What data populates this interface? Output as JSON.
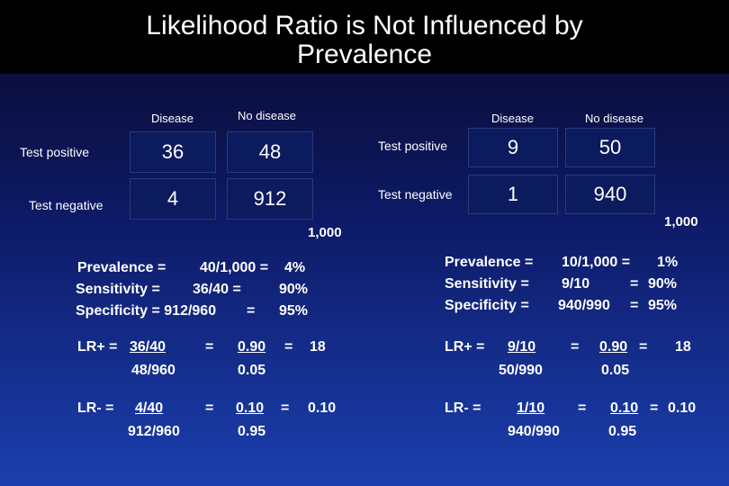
{
  "title": {
    "line1": "Likelihood Ratio is Not Influenced by",
    "line2": "Prevalence"
  },
  "left": {
    "col_headers": [
      "Disease",
      "No disease"
    ],
    "row_labels": [
      "Test positive",
      "Test negative"
    ],
    "cells": [
      [
        "36",
        "48"
      ],
      [
        "4",
        "912"
      ]
    ],
    "total": "1,000",
    "prevalence": {
      "label": "Prevalence =",
      "calc": "40/1,000 =",
      "value": "4%"
    },
    "sensitivity": {
      "label": "Sensitivity =",
      "calc": "36/40   =",
      "value": "90%"
    },
    "specificity": {
      "label": "Specificity = 912/960",
      "calc": "=",
      "value": "95%"
    },
    "lr_plus": {
      "label": "LR+ =",
      "num": "36/40",
      "den": "48/960",
      "eq1": "=",
      "num2": "0.90",
      "eq2": "=",
      "den2": "0.05",
      "result": "18"
    },
    "lr_minus": {
      "label": "LR- =",
      "num": "4/40",
      "den": "912/960",
      "eq1": "=",
      "num2": "0.10",
      "eq2": "=",
      "den2": "0.95",
      "result": "0.10"
    }
  },
  "right": {
    "col_headers": [
      "Disease",
      "No disease"
    ],
    "row_labels": [
      "Test positive",
      "Test negative"
    ],
    "cells": [
      [
        "9",
        "50"
      ],
      [
        "1",
        "940"
      ]
    ],
    "total": "1,000",
    "prevalence": {
      "label": "Prevalence =",
      "calc": "10/1,000 =",
      "value": "1%"
    },
    "sensitivity": {
      "label": "Sensitivity =",
      "calc": "9/10",
      "eq": "=",
      "value": "90%"
    },
    "specificity": {
      "label": "Specificity =",
      "calc": "940/990",
      "eq": "=",
      "value": "95%"
    },
    "lr_plus": {
      "label": "LR+ =",
      "num": "9/10",
      "den": "50/990",
      "eq1": "=",
      "num2": "0.90",
      "eq2": "=",
      "den2": "0.05",
      "result": "18"
    },
    "lr_minus": {
      "label": "LR- =",
      "num": "1/10",
      "den": "940/990",
      "eq1": "=",
      "num2": "0.10",
      "eq2": "=",
      "den2": "0.95",
      "result": "0.10"
    }
  }
}
